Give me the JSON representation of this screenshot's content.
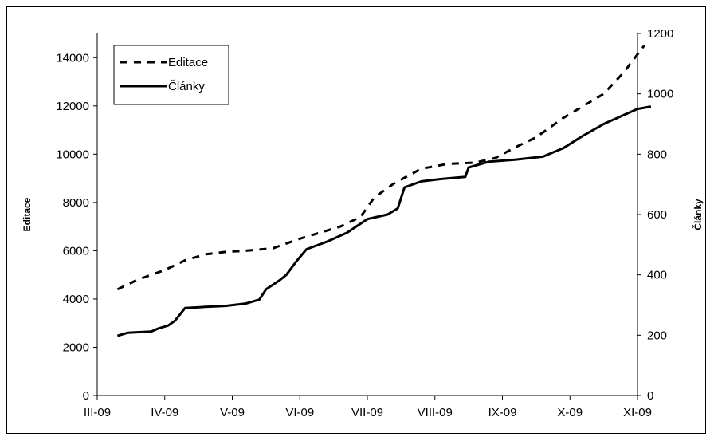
{
  "chart_data": {
    "type": "line",
    "title": "",
    "x_categories": [
      "III-09",
      "IV-09",
      "V-09",
      "VI-09",
      "VII-09",
      "VIII-09",
      "IX-09",
      "X-09",
      "XI-09"
    ],
    "y_left": {
      "label": "Editace",
      "lim": [
        0,
        15000
      ],
      "ticks": [
        "0",
        "2000",
        "4000",
        "6000",
        "8000",
        "10000",
        "12000",
        "14000"
      ]
    },
    "y_right": {
      "label": "Články",
      "lim": [
        0,
        1200
      ],
      "ticks": [
        "0",
        "200",
        "400",
        "600",
        "800",
        "1000",
        "1200"
      ]
    },
    "legend": {
      "position": "top-left",
      "entries": [
        "Editace",
        "Články"
      ]
    },
    "grid": false,
    "series": [
      {
        "name": "Editace",
        "axis": "left",
        "style": "dashed",
        "color": "#000000",
        "points": [
          [
            0.3,
            4400
          ],
          [
            0.6,
            4800
          ],
          [
            1.0,
            5200
          ],
          [
            1.3,
            5600
          ],
          [
            1.6,
            5850
          ],
          [
            1.9,
            5950
          ],
          [
            2.2,
            6000
          ],
          [
            2.6,
            6100
          ],
          [
            3.0,
            6500
          ],
          [
            3.3,
            6750
          ],
          [
            3.6,
            7000
          ],
          [
            3.9,
            7400
          ],
          [
            4.1,
            8200
          ],
          [
            4.4,
            8800
          ],
          [
            4.8,
            9400
          ],
          [
            5.2,
            9600
          ],
          [
            5.6,
            9650
          ],
          [
            5.9,
            9850
          ],
          [
            6.2,
            10300
          ],
          [
            6.5,
            10700
          ],
          [
            6.9,
            11500
          ],
          [
            7.2,
            12000
          ],
          [
            7.5,
            12500
          ],
          [
            7.8,
            13400
          ],
          [
            8.1,
            14500
          ]
        ]
      },
      {
        "name": "Články",
        "axis": "right",
        "style": "solid",
        "color": "#000000",
        "points": [
          [
            0.3,
            198
          ],
          [
            0.45,
            208
          ],
          [
            0.8,
            212
          ],
          [
            0.9,
            222
          ],
          [
            1.05,
            232
          ],
          [
            1.15,
            248
          ],
          [
            1.3,
            290
          ],
          [
            1.6,
            294
          ],
          [
            1.9,
            297
          ],
          [
            2.2,
            305
          ],
          [
            2.4,
            318
          ],
          [
            2.5,
            352
          ],
          [
            2.7,
            382
          ],
          [
            2.8,
            400
          ],
          [
            2.95,
            445
          ],
          [
            3.1,
            485
          ],
          [
            3.4,
            510
          ],
          [
            3.7,
            540
          ],
          [
            4.0,
            585
          ],
          [
            4.3,
            600
          ],
          [
            4.45,
            620
          ],
          [
            4.55,
            690
          ],
          [
            4.8,
            710
          ],
          [
            5.1,
            718
          ],
          [
            5.45,
            725
          ],
          [
            5.5,
            756
          ],
          [
            5.8,
            775
          ],
          [
            6.2,
            782
          ],
          [
            6.6,
            792
          ],
          [
            6.9,
            820
          ],
          [
            7.2,
            862
          ],
          [
            7.5,
            900
          ],
          [
            7.8,
            930
          ],
          [
            8.0,
            950
          ],
          [
            8.2,
            958
          ]
        ]
      }
    ]
  }
}
